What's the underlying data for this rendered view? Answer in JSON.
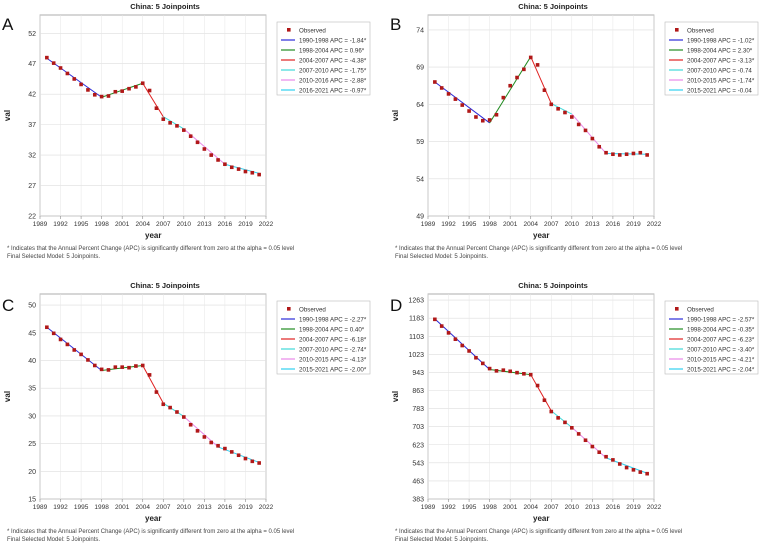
{
  "footnote": {
    "line1": "* Indicates that the Annual Percent Change (APC) is significantly different from zero at the alpha = 0.05 level",
    "line2": "Final Selected Model: 5 Joinpoints."
  },
  "axis_text": {
    "x_label": "year",
    "y_label": "val"
  },
  "legend_observed": "Observed",
  "segment_colors": [
    "#2a2ad8",
    "#228b22",
    "#e02020",
    "#40d8d8",
    "#e888e8",
    "#30d0f0"
  ],
  "chart_data": [
    {
      "panel_letter": "A",
      "type": "scatter",
      "title": "China: 5 Joinpoints",
      "xlabel": "year",
      "ylabel": "val",
      "xlim": [
        1989,
        2022
      ],
      "ylim": [
        22,
        55
      ],
      "yticks": [
        22,
        27,
        32,
        37,
        42,
        47,
        52
      ],
      "xticks": [
        1989,
        1992,
        1995,
        1998,
        2001,
        2004,
        2007,
        2010,
        2013,
        2016,
        2019,
        2022
      ],
      "legend": [
        "Observed",
        "1990-1998 APC = -1.84*",
        "1998-2004 APC = 0.96*",
        "2004-2007 APC = -4.38*",
        "2007-2010 APC = -1.75*",
        "2010-2016 APC = -2.88*",
        "2016-2021 APC = -0.97*"
      ],
      "observed": {
        "x": [
          1990,
          1991,
          1992,
          1993,
          1994,
          1995,
          1996,
          1997,
          1998,
          1999,
          2000,
          2001,
          2002,
          2003,
          2004,
          2005,
          2006,
          2007,
          2008,
          2009,
          2010,
          2011,
          2012,
          2013,
          2014,
          2015,
          2016,
          2017,
          2018,
          2019,
          2020,
          2021
        ],
        "y": [
          48.0,
          47.1,
          46.3,
          45.4,
          44.5,
          43.6,
          42.7,
          41.9,
          41.6,
          41.7,
          42.4,
          42.5,
          42.9,
          43.2,
          43.8,
          42.6,
          39.7,
          37.9,
          37.3,
          36.8,
          36.1,
          35.1,
          34.1,
          33.0,
          32.0,
          31.2,
          30.5,
          30.0,
          29.7,
          29.3,
          29.1,
          28.8
        ]
      },
      "segments": [
        {
          "x": [
            1990,
            1998
          ],
          "y": [
            47.9,
            41.5
          ]
        },
        {
          "x": [
            1998,
            2004
          ],
          "y": [
            41.5,
            43.8
          ]
        },
        {
          "x": [
            2004,
            2007
          ],
          "y": [
            43.8,
            38.3
          ]
        },
        {
          "x": [
            2007,
            2010
          ],
          "y": [
            38.3,
            36.3
          ]
        },
        {
          "x": [
            2010,
            2016
          ],
          "y": [
            36.3,
            30.5
          ]
        },
        {
          "x": [
            2016,
            2021
          ],
          "y": [
            30.5,
            29.0
          ]
        }
      ]
    },
    {
      "panel_letter": "B",
      "type": "scatter",
      "title": "China: 5 Joinpoints",
      "xlabel": "year",
      "ylabel": "val",
      "xlim": [
        1989,
        2022
      ],
      "ylim": [
        49,
        76
      ],
      "yticks": [
        49,
        54,
        59,
        64,
        69,
        74
      ],
      "xticks": [
        1989,
        1992,
        1995,
        1998,
        2001,
        2004,
        2007,
        2010,
        2013,
        2016,
        2019,
        2022
      ],
      "legend": [
        "Observed",
        "1990-1998 APC = -1.02*",
        "1998-2004 APC = 2.30*",
        "2004-2007 APC = -3.13*",
        "2007-2010 APC = -0.74",
        "2010-2015 APC = -1.74*",
        "2015-2021 APC = -0.04"
      ],
      "observed": {
        "x": [
          1990,
          1991,
          1992,
          1993,
          1994,
          1995,
          1996,
          1997,
          1998,
          1999,
          2000,
          2001,
          2002,
          2003,
          2004,
          2005,
          2006,
          2007,
          2008,
          2009,
          2010,
          2011,
          2012,
          2013,
          2014,
          2015,
          2016,
          2017,
          2018,
          2019,
          2020,
          2021
        ],
        "y": [
          67.0,
          66.2,
          65.4,
          64.7,
          63.9,
          63.1,
          62.3,
          61.8,
          61.9,
          62.6,
          64.9,
          66.5,
          67.6,
          68.7,
          70.3,
          69.3,
          65.9,
          64.0,
          63.4,
          62.9,
          62.3,
          61.3,
          60.5,
          59.4,
          58.3,
          57.5,
          57.3,
          57.2,
          57.3,
          57.4,
          57.5,
          57.2
        ]
      },
      "segments": [
        {
          "x": [
            1990,
            1998
          ],
          "y": [
            67.0,
            61.5
          ]
        },
        {
          "x": [
            1998,
            2004
          ],
          "y": [
            61.5,
            70.4
          ]
        },
        {
          "x": [
            2004,
            2007
          ],
          "y": [
            70.4,
            64.1
          ]
        },
        {
          "x": [
            2007,
            2010
          ],
          "y": [
            64.1,
            62.7
          ]
        },
        {
          "x": [
            2010,
            2015
          ],
          "y": [
            62.7,
            57.4
          ]
        },
        {
          "x": [
            2015,
            2021
          ],
          "y": [
            57.4,
            57.3
          ]
        }
      ]
    },
    {
      "panel_letter": "C",
      "type": "scatter",
      "title": "China: 5 Joinpoints",
      "xlabel": "year",
      "ylabel": "val",
      "xlim": [
        1989,
        2022
      ],
      "ylim": [
        15,
        52
      ],
      "yticks": [
        15,
        20,
        25,
        30,
        35,
        40,
        45,
        50
      ],
      "xticks": [
        1989,
        1992,
        1995,
        1998,
        2001,
        2004,
        2007,
        2010,
        2013,
        2016,
        2019,
        2022
      ],
      "legend": [
        "Observed",
        "1990-1998 APC = -2.27*",
        "1998-2004 APC = 0.40*",
        "2004-2007 APC = -6.18*",
        "2007-2010 APC = -2.74*",
        "2010-2015 APC = -4.13*",
        "2015-2021 APC = -2.00*"
      ],
      "observed": {
        "x": [
          1990,
          1991,
          1992,
          1993,
          1994,
          1995,
          1996,
          1997,
          1998,
          1999,
          2000,
          2001,
          2002,
          2003,
          2004,
          2005,
          2006,
          2007,
          2008,
          2009,
          2010,
          2011,
          2012,
          2013,
          2014,
          2015,
          2016,
          2017,
          2018,
          2019,
          2020,
          2021
        ],
        "y": [
          46.0,
          44.9,
          43.8,
          42.9,
          41.9,
          41.1,
          40.1,
          39.1,
          38.4,
          38.3,
          38.8,
          38.8,
          38.7,
          39.0,
          39.1,
          37.4,
          34.3,
          32.1,
          31.5,
          30.7,
          29.8,
          28.4,
          27.3,
          26.2,
          25.2,
          24.6,
          24.1,
          23.5,
          22.9,
          22.3,
          21.8,
          21.5
        ]
      },
      "segments": [
        {
          "x": [
            1990,
            1998
          ],
          "y": [
            46.0,
            38.2
          ]
        },
        {
          "x": [
            1998,
            2004
          ],
          "y": [
            38.2,
            39.1
          ]
        },
        {
          "x": [
            2004,
            2007
          ],
          "y": [
            39.1,
            32.3
          ]
        },
        {
          "x": [
            2007,
            2010
          ],
          "y": [
            32.3,
            29.9
          ]
        },
        {
          "x": [
            2010,
            2015
          ],
          "y": [
            29.9,
            24.4
          ]
        },
        {
          "x": [
            2015,
            2021
          ],
          "y": [
            24.4,
            21.6
          ]
        }
      ]
    },
    {
      "panel_letter": "D",
      "type": "scatter",
      "title": "China: 5 Joinpoints",
      "xlabel": "year",
      "ylabel": "val",
      "xlim": [
        1989,
        2022
      ],
      "ylim": [
        383,
        1290
      ],
      "yticks": [
        383,
        463,
        543,
        623,
        703,
        783,
        863,
        943,
        1023,
        1103,
        1183,
        1263
      ],
      "xticks": [
        1989,
        1992,
        1995,
        1998,
        2001,
        2004,
        2007,
        2010,
        2013,
        2016,
        2019,
        2022
      ],
      "legend": [
        "Observed",
        "1990-1998 APC = -2.57*",
        "1998-2004 APC = -0.35*",
        "2004-2007 APC = -6.23*",
        "2007-2010 APC = -3.40*",
        "2010-2015 APC = -4.21*",
        "2015-2021 APC = -2.04*"
      ],
      "observed": {
        "x": [
          1990,
          1991,
          1992,
          1993,
          1994,
          1995,
          1996,
          1997,
          1998,
          1999,
          2000,
          2001,
          2002,
          2003,
          2004,
          2005,
          2006,
          2007,
          2008,
          2009,
          2010,
          2011,
          2012,
          2013,
          2014,
          2015,
          2016,
          2017,
          2018,
          2019,
          2020,
          2021
        ],
        "y": [
          1178,
          1148,
          1118,
          1090,
          1062,
          1038,
          1008,
          983,
          960,
          950,
          953,
          948,
          942,
          937,
          933,
          885,
          820,
          770,
          742,
          722,
          698,
          671,
          643,
          615,
          590,
          570,
          556,
          538,
          522,
          512,
          502,
          495
        ]
      },
      "segments": [
        {
          "x": [
            1990,
            1998
          ],
          "y": [
            1180,
            956
          ]
        },
        {
          "x": [
            1998,
            2004
          ],
          "y": [
            956,
            933
          ]
        },
        {
          "x": [
            2004,
            2007
          ],
          "y": [
            933,
            773
          ]
        },
        {
          "x": [
            2007,
            2010
          ],
          "y": [
            773,
            700
          ]
        },
        {
          "x": [
            2010,
            2015
          ],
          "y": [
            700,
            565
          ]
        },
        {
          "x": [
            2015,
            2021
          ],
          "y": [
            565,
            497
          ]
        }
      ]
    }
  ]
}
